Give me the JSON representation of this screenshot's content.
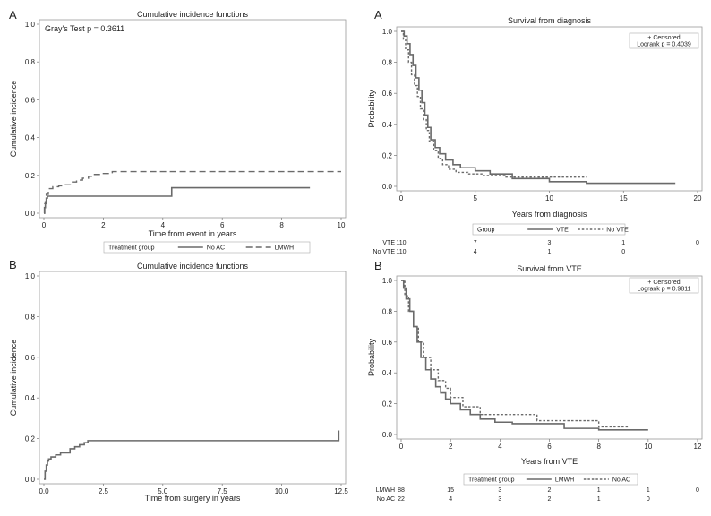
{
  "chart_data": [
    {
      "id": "cif_a",
      "panel": "A",
      "type": "line",
      "title": "Cumulative incidence functions",
      "xlabel": "Time from event in years",
      "ylabel": "Cumulative incidence",
      "xlim": [
        0,
        10
      ],
      "ylim": [
        0,
        1
      ],
      "xticks": [
        "0",
        "2",
        "4",
        "6",
        "8",
        "10"
      ],
      "yticks": [
        "0.0",
        "0.2",
        "0.4",
        "0.6",
        "0.8",
        "1.0"
      ],
      "annotation": "Gray's Test p = 0.3611",
      "legend": {
        "title": "Treatment group",
        "items": [
          "No AC",
          "LMWH"
        ],
        "placement": "bottom"
      },
      "series": [
        {
          "name": "No AC",
          "style": "solid",
          "x": [
            0,
            0.02,
            0.05,
            0.08,
            0.12,
            0.2,
            4.3,
            4.3,
            8.95
          ],
          "y": [
            0,
            0.03,
            0.06,
            0.08,
            0.09,
            0.09,
            0.09,
            0.135,
            0.135
          ]
        },
        {
          "name": "LMWH",
          "style": "dashed",
          "x": [
            0,
            0.03,
            0.08,
            0.15,
            0.3,
            0.5,
            0.7,
            0.9,
            1.1,
            1.3,
            1.5,
            1.7,
            2.0,
            2.3,
            10
          ],
          "y": [
            0,
            0.05,
            0.1,
            0.13,
            0.14,
            0.145,
            0.15,
            0.165,
            0.175,
            0.185,
            0.195,
            0.205,
            0.21,
            0.22,
            0.22
          ]
        }
      ]
    },
    {
      "id": "surv_a",
      "panel": "A",
      "type": "line",
      "title": "Survival from diagnosis",
      "xlabel": "Years from diagnosis",
      "ylabel": "Probability",
      "xlim": [
        0,
        20
      ],
      "ylim": [
        0,
        1
      ],
      "xticks": [
        "0",
        "5",
        "10",
        "15",
        "20"
      ],
      "yticks": [
        "0.0",
        "0.2",
        "0.4",
        "0.6",
        "0.8",
        "1.0"
      ],
      "annotation_lines": [
        "+ Censored",
        "Logrank p = 0.4039"
      ],
      "legend": {
        "title": "Group",
        "items": [
          "VTE",
          "No VTE"
        ],
        "placement": "bottom"
      },
      "series": [
        {
          "name": "VTE",
          "style": "solid",
          "x": [
            0,
            0.2,
            0.4,
            0.6,
            0.8,
            1.0,
            1.2,
            1.4,
            1.6,
            1.8,
            2.0,
            2.3,
            2.6,
            3.0,
            3.5,
            4.0,
            5.0,
            6.0,
            7.5,
            10,
            12.5,
            18.5
          ],
          "y": [
            1.0,
            0.97,
            0.92,
            0.85,
            0.78,
            0.7,
            0.62,
            0.54,
            0.46,
            0.38,
            0.3,
            0.25,
            0.21,
            0.17,
            0.14,
            0.12,
            0.1,
            0.08,
            0.05,
            0.03,
            0.02,
            0.02
          ]
        },
        {
          "name": "No VTE",
          "style": "dotted",
          "x": [
            0,
            0.15,
            0.3,
            0.5,
            0.7,
            0.9,
            1.1,
            1.3,
            1.5,
            1.7,
            1.9,
            2.2,
            2.5,
            2.8,
            3.2,
            3.7,
            4.5,
            5.5,
            7.0,
            9.0,
            12.5
          ],
          "y": [
            1.0,
            0.95,
            0.88,
            0.8,
            0.72,
            0.65,
            0.58,
            0.5,
            0.43,
            0.36,
            0.29,
            0.23,
            0.18,
            0.14,
            0.11,
            0.09,
            0.08,
            0.07,
            0.06,
            0.06,
            0.06
          ]
        }
      ],
      "risk_table": {
        "rows": [
          {
            "label": "VTE",
            "values": [
              "110",
              "7",
              "3",
              "1",
              "0"
            ]
          },
          {
            "label": "No VTE",
            "values": [
              "110",
              "4",
              "1",
              "0"
            ]
          }
        ]
      }
    },
    {
      "id": "cif_b",
      "panel": "B",
      "type": "line",
      "title": "Cumulative incidence functions",
      "xlabel": "Time from surgery in years",
      "ylabel": "Cumulative incidence",
      "xlim": [
        0,
        12.5
      ],
      "ylim": [
        0,
        1
      ],
      "xticks": [
        "0.0",
        "2.5",
        "5.0",
        "7.5",
        "10.0",
        "12.5"
      ],
      "yticks": [
        "0.0",
        "0.2",
        "0.4",
        "0.6",
        "0.8",
        "1.0"
      ],
      "series": [
        {
          "name": "",
          "style": "solid",
          "x": [
            0,
            0.05,
            0.1,
            0.15,
            0.2,
            0.3,
            0.5,
            0.7,
            0.9,
            1.1,
            1.3,
            1.5,
            1.7,
            1.85,
            12.3,
            12.4
          ],
          "y": [
            0,
            0.04,
            0.07,
            0.09,
            0.1,
            0.11,
            0.12,
            0.13,
            0.13,
            0.15,
            0.16,
            0.17,
            0.18,
            0.19,
            0.19,
            0.24
          ]
        }
      ]
    },
    {
      "id": "surv_b",
      "panel": "B",
      "type": "line",
      "title": "Survival from VTE",
      "xlabel": "Years from VTE",
      "ylabel": "Probability",
      "xlim": [
        0,
        12
      ],
      "ylim": [
        0,
        1
      ],
      "xticks": [
        "0",
        "2",
        "4",
        "6",
        "8",
        "10",
        "12"
      ],
      "yticks": [
        "0.0",
        "0.2",
        "0.4",
        "0.6",
        "0.8",
        "1.0"
      ],
      "annotation_lines": [
        "+ Censored",
        "Logrank p = 0.9811"
      ],
      "legend": {
        "title": "Treatment group",
        "items": [
          "LMWH",
          "No AC"
        ],
        "placement": "bottom"
      },
      "series": [
        {
          "name": "LMWH",
          "style": "solid",
          "x": [
            0,
            0.1,
            0.2,
            0.35,
            0.5,
            0.65,
            0.8,
            1.0,
            1.2,
            1.4,
            1.6,
            1.8,
            2.0,
            2.4,
            2.8,
            3.2,
            3.8,
            4.5,
            5.5,
            6.6,
            8.0,
            10.0
          ],
          "y": [
            1.0,
            0.95,
            0.88,
            0.8,
            0.7,
            0.6,
            0.5,
            0.42,
            0.36,
            0.31,
            0.27,
            0.23,
            0.2,
            0.16,
            0.13,
            0.1,
            0.08,
            0.07,
            0.07,
            0.04,
            0.03,
            0.03
          ]
        },
        {
          "name": "No AC",
          "style": "dotted",
          "x": [
            0,
            0.15,
            0.3,
            0.5,
            0.7,
            0.9,
            1.2,
            1.5,
            1.8,
            2.0,
            2.5,
            3.2,
            4.2,
            5.5,
            6.7,
            8.0,
            9.2
          ],
          "y": [
            1.0,
            0.9,
            0.8,
            0.7,
            0.6,
            0.5,
            0.42,
            0.35,
            0.3,
            0.24,
            0.18,
            0.13,
            0.13,
            0.09,
            0.09,
            0.05,
            0.05
          ]
        }
      ],
      "risk_table": {
        "rows": [
          {
            "label": "LMWH",
            "values": [
              "88",
              "15",
              "3",
              "2",
              "1",
              "1",
              "0"
            ]
          },
          {
            "label": "No AC",
            "values": [
              "22",
              "4",
              "3",
              "2",
              "1",
              "0"
            ]
          }
        ]
      }
    }
  ]
}
